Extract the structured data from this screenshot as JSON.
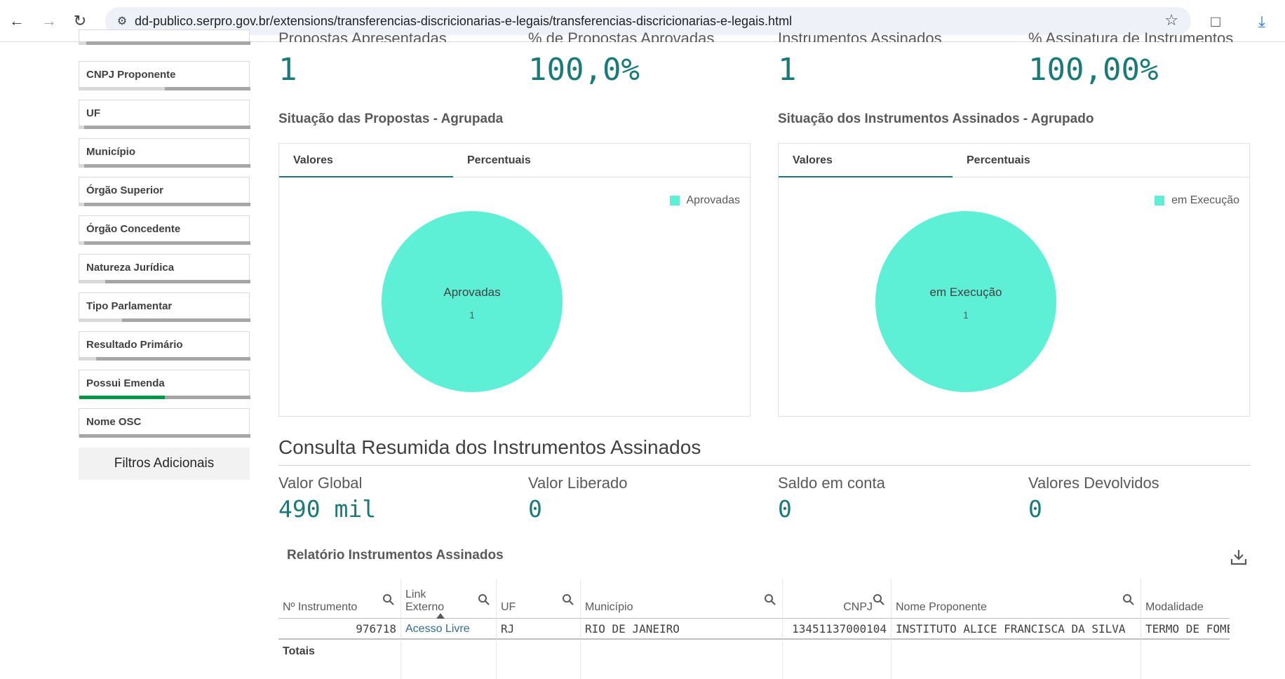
{
  "browser": {
    "url": "dd-publico.serpro.gov.br/extensions/transferencias-discricionarias-e-legais/transferencias-discricionarias-e-legais.html"
  },
  "sidebar": {
    "filters": [
      {
        "label": "CNPJ Proponente",
        "fill": 0.5
      },
      {
        "label": "UF",
        "fill": 0.03
      },
      {
        "label": "Município",
        "fill": 0.03
      },
      {
        "label": "Órgão Superior",
        "fill": 0.03
      },
      {
        "label": "Órgão Concedente",
        "fill": 0.03
      },
      {
        "label": "Natureza Jurídica",
        "fill": 0.15
      },
      {
        "label": "Tipo Parlamentar",
        "fill": 0.25
      },
      {
        "label": "Resultado Primário",
        "fill": 0.1
      },
      {
        "label": "Possui Emenda",
        "fill": 0.5,
        "green": true
      },
      {
        "label": "Nome OSC",
        "fill": 0.0
      }
    ],
    "extra_filters_label": "Filtros Adicionais"
  },
  "kpis_top": [
    {
      "label": "Propostas Apresentadas",
      "value": "1"
    },
    {
      "label": "% de Propostas Aprovadas",
      "value": "100,0%"
    },
    {
      "label": "Instrumentos Assinados",
      "value": "1"
    },
    {
      "label": "% Assinatura de Instrumentos",
      "value": "100,00%"
    }
  ],
  "charts": {
    "left": {
      "title": "Situação das Propostas - Agrupada",
      "tabs": [
        "Valores",
        "Percentuais"
      ],
      "legend": "Aprovadas",
      "slice_label": "Aprovadas",
      "slice_value": "1",
      "color": "#5ef0d6"
    },
    "right": {
      "title": "Situação dos Instrumentos Assinados - Agrupado",
      "tabs": [
        "Valores",
        "Percentuais"
      ],
      "legend": "em Execução",
      "slice_label": "em Execução",
      "slice_value": "1",
      "color": "#5ef0d6"
    }
  },
  "chart_data": [
    {
      "type": "pie",
      "categories": [
        "Aprovadas"
      ],
      "values": [
        1
      ],
      "title": "Situação das Propostas - Agrupada",
      "legend": "top-right"
    },
    {
      "type": "pie",
      "categories": [
        "em Execução"
      ],
      "values": [
        1
      ],
      "title": "Situação dos Instrumentos Assinados - Agrupado",
      "legend": "top-right"
    }
  ],
  "summary": {
    "title": "Consulta Resumida dos Instrumentos Assinados",
    "kpis": [
      {
        "label": "Valor Global",
        "value": "490 mil"
      },
      {
        "label": "Valor Liberado",
        "value": "0"
      },
      {
        "label": "Saldo em conta",
        "value": "0"
      },
      {
        "label": "Valores Devolvidos",
        "value": "0"
      }
    ]
  },
  "report": {
    "title": "Relatório Instrumentos Assinados",
    "columns": [
      "Nº Instrumento",
      "Link Externo",
      "UF",
      "Município",
      "CNPJ",
      "Nome Proponente",
      "Modalidade"
    ],
    "link_line1": "Link",
    "link_line2": "Externo",
    "row": {
      "instrumento": "976718",
      "link": "Acesso Livre",
      "uf": "RJ",
      "municipio": "RIO DE JANEIRO",
      "cnpj": "13451137000104",
      "proponente": "INSTITUTO ALICE FRANCISCA DA SILVA",
      "modalidade": "TERMO DE FOMENTO"
    },
    "totals_label": "Totais"
  }
}
